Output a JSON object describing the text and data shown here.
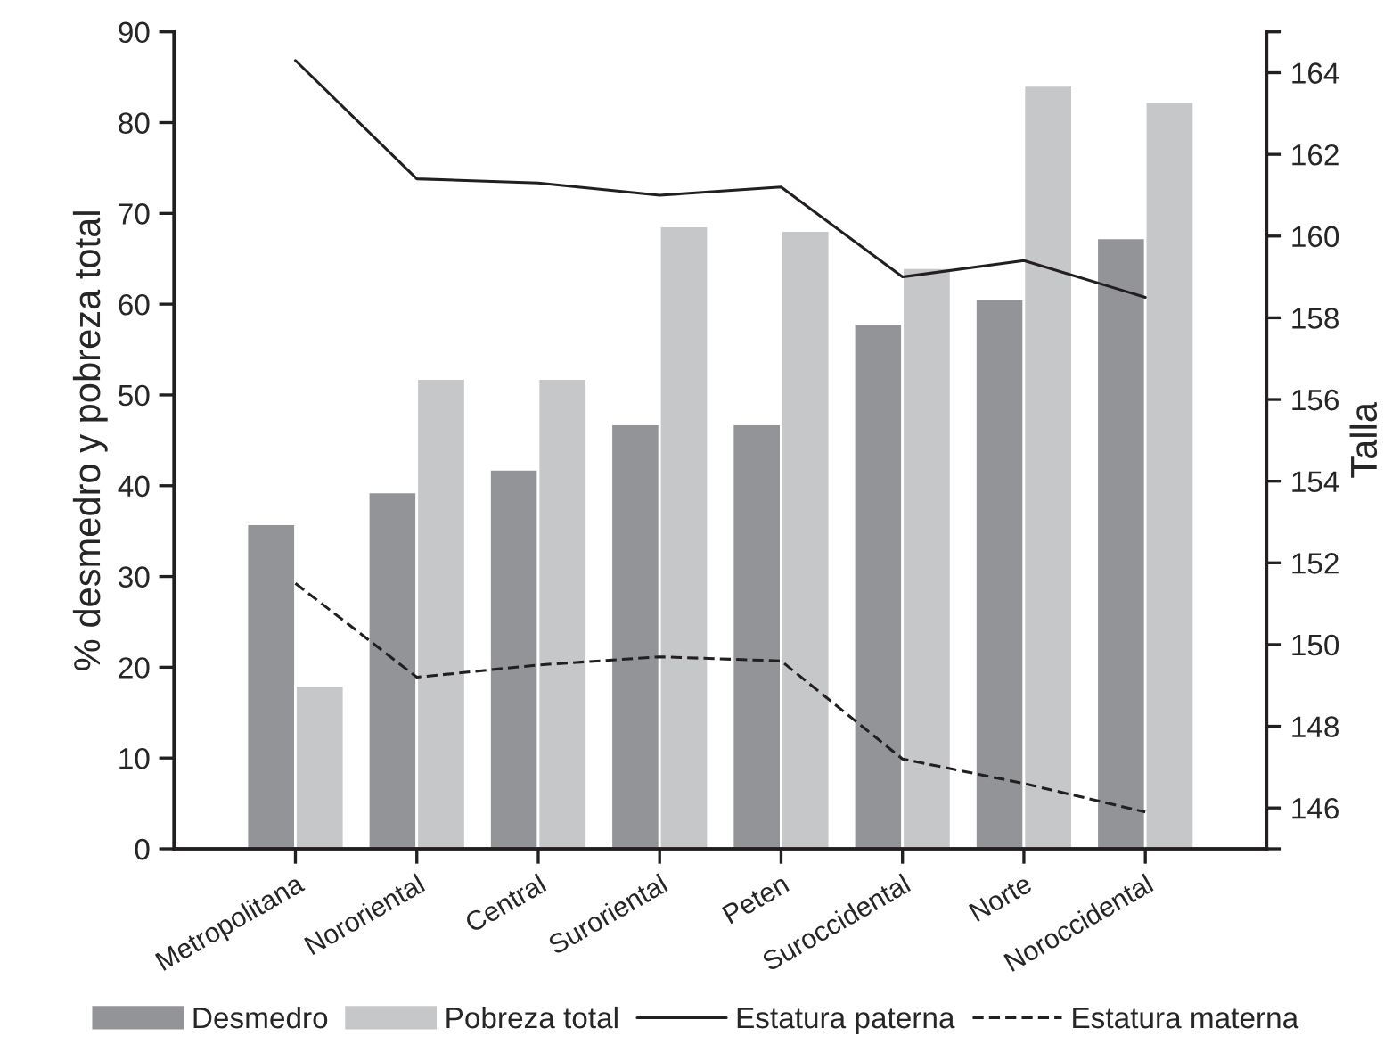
{
  "chart_data": {
    "type": "bar",
    "ylabel": "% desmedro y pobreza total",
    "y2label": "Talla",
    "categories": [
      "Metropolitana",
      "Nororiental",
      "Central",
      "Suroriental",
      "Peten",
      "Suroccidental",
      "Norte",
      "Noroccidental"
    ],
    "series": [
      {
        "name": "Desmedro",
        "color": "#939498",
        "values": [
          35.8,
          39.3,
          41.8,
          46.8,
          46.8,
          57.9,
          60.6,
          67.3
        ]
      },
      {
        "name": "Pobreza total",
        "color": "#c6c7c9",
        "values": [
          18,
          51.8,
          51.8,
          68.6,
          68.1,
          64,
          84.1,
          82.3
        ]
      },
      {
        "name": "Estatura paterna",
        "type": "line",
        "axis": "y2",
        "color": "#231f20",
        "line_style": "solid",
        "values": [
          164.3,
          161.4,
          161.3,
          161.0,
          161.2,
          159.0,
          159.4,
          158.5
        ]
      },
      {
        "name": "Estatura materna",
        "type": "line",
        "axis": "y2",
        "color": "#231f20",
        "line_style": "dashed",
        "values": [
          151.5,
          149.2,
          149.5,
          149.7,
          149.6,
          147.2,
          146.6,
          145.9
        ]
      }
    ],
    "ylim": [
      0,
      90
    ],
    "yticks": [
      0,
      10,
      20,
      30,
      40,
      50,
      60,
      70,
      80,
      90
    ],
    "y2lim": [
      145,
      165
    ],
    "y2ticks": [
      {
        "value": 145,
        "label": null
      },
      146,
      148,
      150,
      152,
      154,
      156,
      158,
      160,
      162,
      164,
      {
        "value": 165,
        "label": null
      }
    ],
    "grid": false,
    "legend": "bottom",
    "marker": "none"
  }
}
